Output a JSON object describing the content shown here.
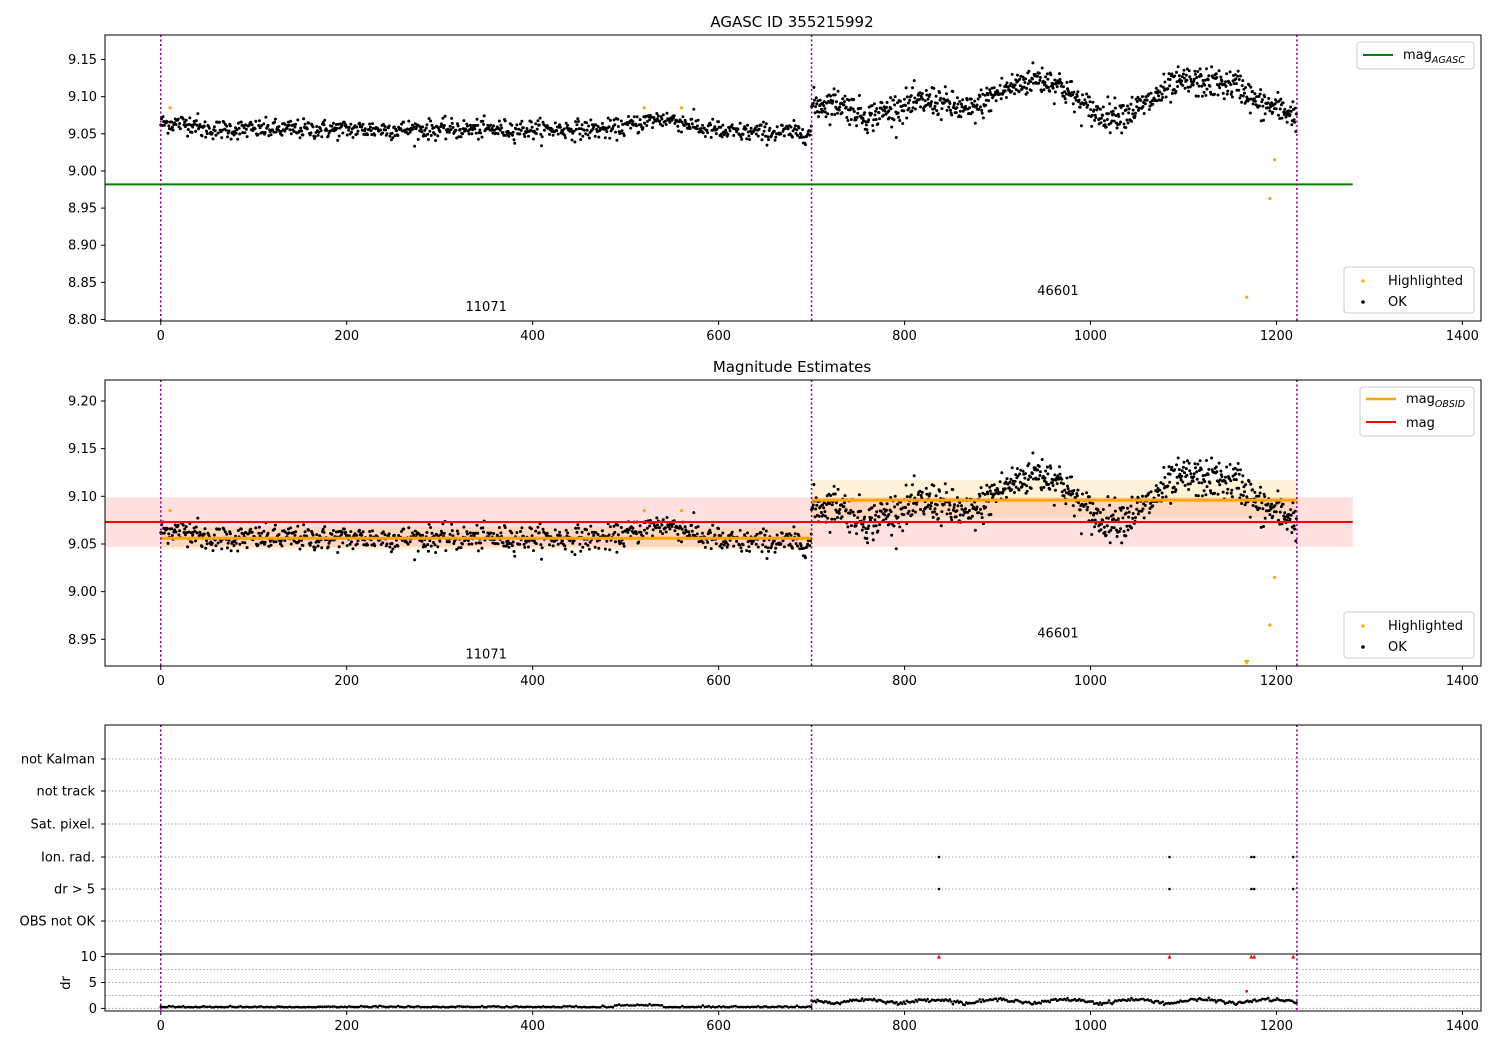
{
  "chart_data": [
    {
      "type": "scatter",
      "title": "AGASC ID 355215992",
      "xlim": [
        -60,
        1420
      ],
      "ylim": [
        8.798,
        9.183
      ],
      "xticks": [
        0,
        200,
        400,
        600,
        800,
        1000,
        1200,
        1400
      ],
      "yticks": [
        8.8,
        8.85,
        8.9,
        8.95,
        9.0,
        9.05,
        9.1,
        9.15
      ],
      "obs_boundaries": [
        0,
        700,
        1222
      ],
      "obs_labels": [
        {
          "text": "11071",
          "x": 350,
          "y": 8.818
        },
        {
          "text": "46601",
          "x": 965,
          "y": 8.84
        }
      ],
      "lines": [
        {
          "name": "mag_AGASC",
          "label_main": "mag",
          "label_sub": "AGASC",
          "color": "#008000",
          "y": 8.982,
          "x": [
            -60,
            1282
          ]
        }
      ],
      "series": [
        {
          "name": "Highlighted",
          "color": "#ffa500",
          "points": [
            [
              10,
              9.085
            ],
            [
              520,
              9.085
            ],
            [
              560,
              9.085
            ],
            [
              1168,
              8.83
            ],
            [
              1193,
              8.963
            ],
            [
              1198,
              9.015
            ]
          ]
        },
        {
          "name": "OK",
          "color": "#000000",
          "description": "dense black points; obsid 11071 around 9.057, obsid 46601 around 9.095"
        }
      ],
      "legend": {
        "upper": "top-right",
        "lower": "bottom-right"
      }
    },
    {
      "type": "scatter",
      "title": "Magnitude Estimates",
      "xlim": [
        -60,
        1420
      ],
      "ylim": [
        8.922,
        9.222
      ],
      "xticks": [
        0,
        200,
        400,
        600,
        800,
        1000,
        1200,
        1400
      ],
      "yticks": [
        8.95,
        9.0,
        9.05,
        9.1,
        9.15,
        9.2
      ],
      "obs_boundaries": [
        0,
        700,
        1222
      ],
      "obs_labels": [
        {
          "text": "11071",
          "x": 350,
          "y": 8.935
        },
        {
          "text": "46601",
          "x": 965,
          "y": 8.957
        }
      ],
      "lines": [
        {
          "name": "mag_OBSID",
          "label_main": "mag",
          "label_sub": "OBSID",
          "color": "#ffa500",
          "segments": [
            {
              "x": [
                0,
                700
              ],
              "y": 9.056,
              "band": [
                9.044,
                9.068
              ]
            },
            {
              "x": [
                700,
                1222
              ],
              "y": 9.096,
              "band": [
                9.078,
                9.117
              ]
            }
          ]
        },
        {
          "name": "mag",
          "label_main": "mag",
          "label_sub": "",
          "color": "#ff0000",
          "y": 9.073,
          "x": [
            -60,
            1282
          ],
          "band": [
            9.047,
            9.099
          ]
        }
      ],
      "series": [
        {
          "name": "Highlighted",
          "color": "#ffa500",
          "points": [
            [
              10,
              9.085
            ],
            [
              520,
              9.085
            ],
            [
              560,
              9.085
            ],
            [
              1168,
              8.924
            ],
            [
              1193,
              8.965
            ],
            [
              1198,
              9.015
            ]
          ]
        },
        {
          "name": "OK",
          "color": "#000000"
        }
      ],
      "legend": {
        "upper": "top-right",
        "lower": "bottom-right"
      }
    },
    {
      "type": "scatter",
      "xlim": [
        -60,
        1420
      ],
      "categories": [
        "not Kalman",
        "not track",
        "Sat. pixel.",
        "Ion. rad.",
        "dr > 5",
        "OBS not OK"
      ],
      "flag_points": {
        "Ion. rad.": [
          837,
          1085,
          1173,
          1176,
          1218
        ],
        "dr > 5": [
          837,
          1085,
          1173,
          1176,
          1218
        ]
      },
      "obs_boundaries": [
        0,
        700,
        1222
      ]
    },
    {
      "type": "scatter",
      "ylabel": "dr",
      "xlim": [
        -60,
        1420
      ],
      "ylim": [
        -0.5,
        10.5
      ],
      "xticks": [
        0,
        200,
        400,
        600,
        800,
        1000,
        1200,
        1400
      ],
      "yticks": [
        0,
        5,
        10
      ],
      "obs_boundaries": [
        0,
        700,
        1222
      ],
      "clipped_markers": [
        837,
        1085,
        1173,
        1176,
        1218
      ],
      "red_point": [
        1168,
        3.3
      ]
    }
  ],
  "legend_labels": {
    "highlighted": "Highlighted",
    "ok": "OK"
  },
  "colors": {
    "ok": "#000000",
    "highlighted": "#ffa500",
    "agasc_line": "#008000",
    "obsid_line": "#ffa500",
    "mag_line": "#ff0000",
    "obs_boundary": "#800080"
  }
}
